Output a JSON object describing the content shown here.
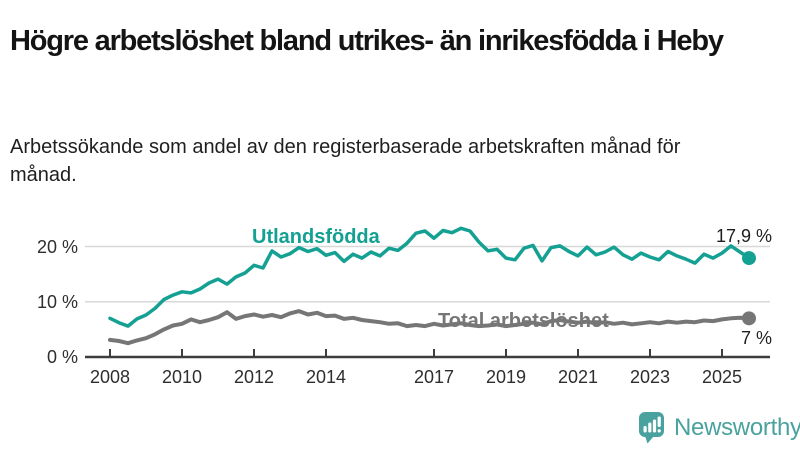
{
  "header": {
    "title": "Högre arbetslöshet bland utrikes- än inrikesfödda i Heby",
    "subtitle": "Arbetssökande som andel av den registerbaserade arbetskraften månad för månad."
  },
  "chart_data": {
    "type": "line",
    "title": "Högre arbetslöshet bland utrikes- än inrikesfödda i Heby",
    "subtitle": "Arbetssökande som andel av den registerbaserade arbetskraften månad för månad.",
    "xlabel": "",
    "ylabel": "",
    "xlim": [
      2007.3,
      2026.3
    ],
    "ylim": [
      0,
      28
    ],
    "grid": "horizontal",
    "legend_position": "inline-labels",
    "yticks": [
      {
        "value": 0,
        "label": "0 %"
      },
      {
        "value": 10,
        "label": "10 %"
      },
      {
        "value": 20,
        "label": "20 %"
      }
    ],
    "xticks": [
      {
        "value": 2008,
        "label": "2008"
      },
      {
        "value": 2010,
        "label": "2010"
      },
      {
        "value": 2012,
        "label": "2012"
      },
      {
        "value": 2014,
        "label": "2014"
      },
      {
        "value": 2017,
        "label": "2017"
      },
      {
        "value": 2019,
        "label": "2019"
      },
      {
        "value": 2021,
        "label": "2021"
      },
      {
        "value": 2023,
        "label": "2023"
      },
      {
        "value": 2025,
        "label": "2025"
      }
    ],
    "series": [
      {
        "name": "Utlandsfödda",
        "color": "#14a092",
        "end_label": "17,9 %",
        "end_value": 17.9,
        "x_start": 2008,
        "x_step": 0.25,
        "values": [
          7.0,
          6.2,
          5.6,
          6.9,
          7.6,
          8.8,
          10.4,
          11.2,
          11.8,
          11.6,
          12.3,
          13.4,
          14.1,
          13.2,
          14.5,
          15.2,
          16.6,
          16.1,
          19.2,
          18.1,
          18.7,
          19.8,
          19.1,
          19.6,
          18.4,
          18.9,
          17.3,
          18.6,
          17.9,
          19.0,
          18.3,
          19.7,
          19.3,
          20.6,
          22.4,
          22.8,
          21.5,
          22.9,
          22.5,
          23.3,
          22.8,
          20.8,
          19.2,
          19.5,
          17.9,
          17.6,
          19.7,
          20.2,
          17.4,
          19.8,
          20.1,
          19.1,
          18.3,
          19.9,
          18.5,
          19.0,
          19.9,
          18.5,
          17.7,
          18.8,
          18.1,
          17.6,
          19.1,
          18.3,
          17.7,
          17.0,
          18.6,
          17.9,
          18.8,
          20.1,
          19.0,
          17.9
        ]
      },
      {
        "name": "Total arbetslöshet",
        "color": "#767676",
        "end_label": "7 %",
        "end_value": 7,
        "x_start": 2008,
        "x_step": 0.25,
        "values": [
          3.1,
          2.9,
          2.5,
          3.0,
          3.4,
          4.1,
          5.0,
          5.7,
          6.0,
          6.8,
          6.3,
          6.7,
          7.2,
          8.1,
          6.9,
          7.4,
          7.7,
          7.3,
          7.6,
          7.2,
          7.9,
          8.3,
          7.7,
          8.0,
          7.4,
          7.5,
          6.9,
          7.1,
          6.7,
          6.5,
          6.3,
          6.0,
          6.1,
          5.6,
          5.8,
          5.6,
          6.0,
          5.7,
          5.9,
          6.1,
          5.8,
          5.6,
          5.7,
          5.9,
          5.6,
          5.8,
          6.0,
          6.2,
          5.9,
          6.5,
          6.7,
          6.4,
          6.2,
          6.4,
          6.1,
          6.3,
          6.0,
          6.2,
          5.9,
          6.1,
          6.3,
          6.1,
          6.4,
          6.2,
          6.4,
          6.3,
          6.6,
          6.5,
          6.8,
          7.0,
          7.1,
          7.0
        ]
      }
    ]
  },
  "footer": {
    "brand": "Newsworthy",
    "logo_icon": "bar-chart-speech-bubble-icon",
    "brand_color": "#4aa29e"
  }
}
